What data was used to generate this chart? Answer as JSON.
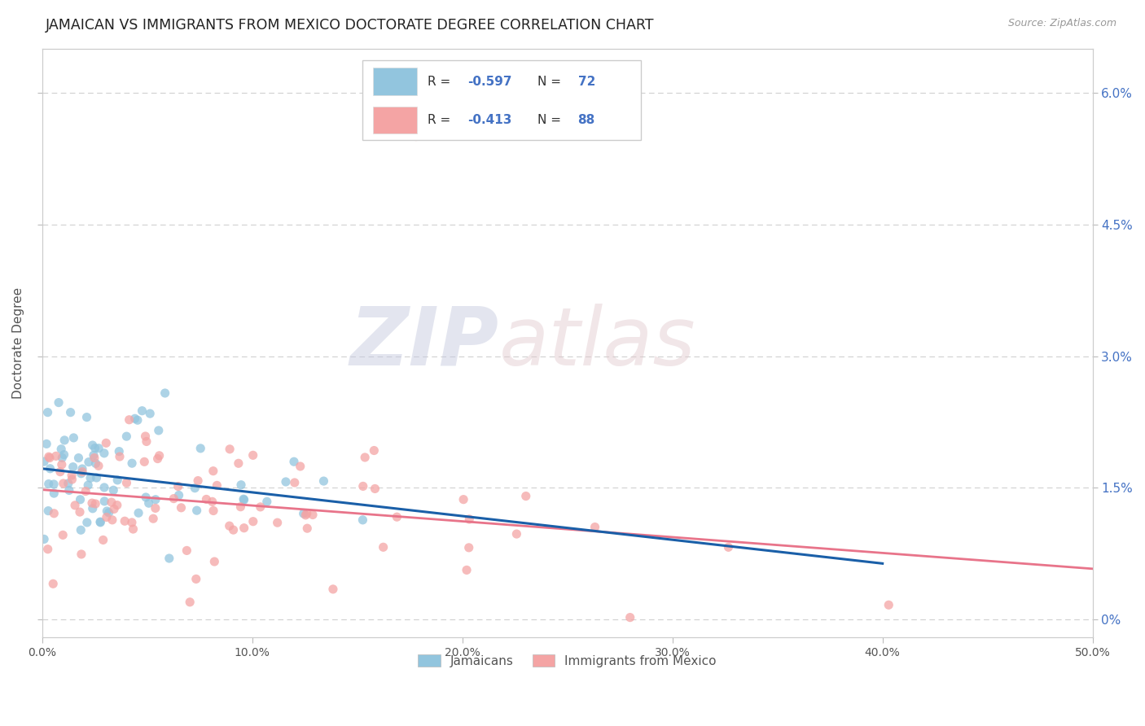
{
  "title": "JAMAICAN VS IMMIGRANTS FROM MEXICO DOCTORATE DEGREE CORRELATION CHART",
  "source": "Source: ZipAtlas.com",
  "ylabel": "Doctorate Degree",
  "xmin": 0.0,
  "xmax": 0.5,
  "ymin": -0.002,
  "ymax": 0.065,
  "yticks": [
    0.0,
    0.015,
    0.03,
    0.045,
    0.06
  ],
  "ytick_labels": [
    "",
    "",
    "",
    "",
    ""
  ],
  "ytick_labels_right": [
    "0%",
    "1.5%",
    "3.0%",
    "4.5%",
    "6.0%"
  ],
  "xticks": [
    0.0,
    0.1,
    0.2,
    0.3,
    0.4,
    0.5
  ],
  "xtick_labels": [
    "0.0%",
    "10.0%",
    "20.0%",
    "30.0%",
    "40.0%",
    "50.0%"
  ],
  "legend_R1": "-0.597",
  "legend_N1": "72",
  "legend_R2": "-0.413",
  "legend_N2": "88",
  "color_blue": "#92c5de",
  "color_pink": "#f4a4a4",
  "color_line_blue": "#1a5fa8",
  "color_line_pink": "#e8748a",
  "background_color": "#ffffff",
  "grid_color": "#d0d0d0",
  "title_color": "#222222",
  "right_tick_color": "#4472c4",
  "blue_intercept": 0.0172,
  "blue_slope": -0.027,
  "pink_intercept": 0.0148,
  "pink_slope": -0.018
}
